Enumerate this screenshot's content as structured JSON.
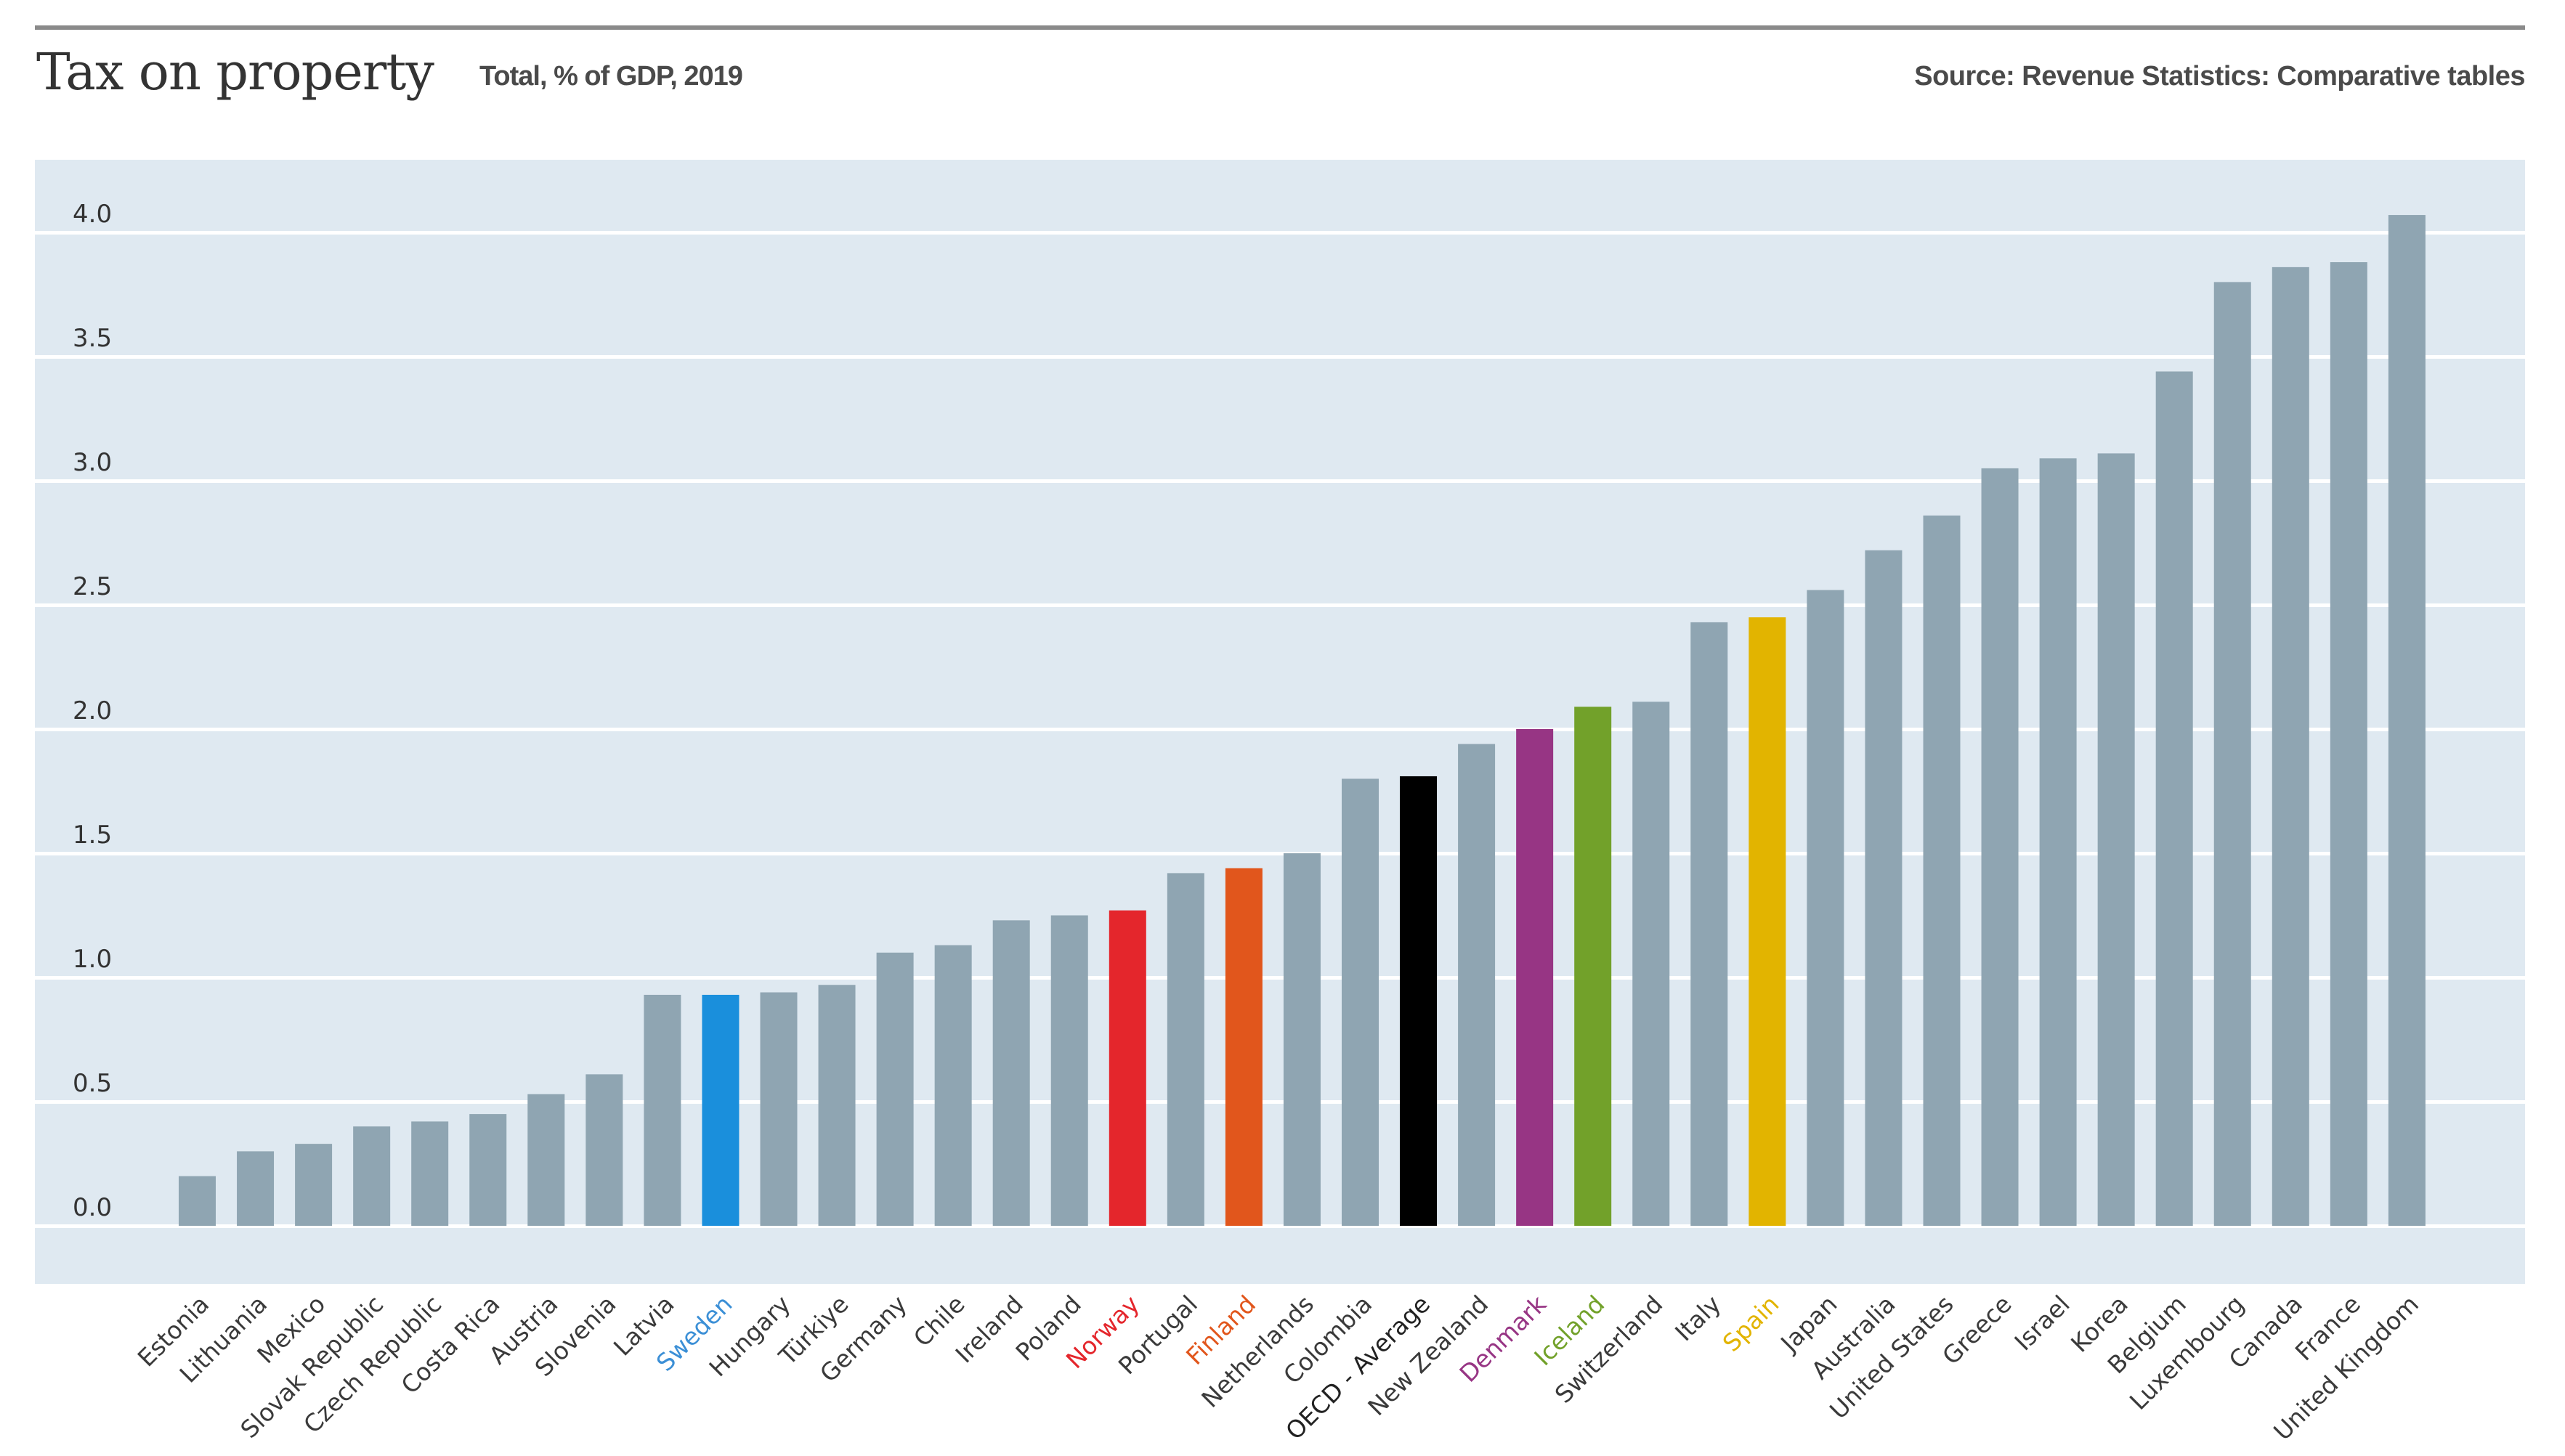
{
  "header": {
    "title": "Tax on property",
    "subtitle": "Total, % of GDP, 2019",
    "source": "Source: Revenue Statistics: Comparative tables"
  },
  "colors": {
    "plot_background": "#dfe9f1",
    "gridline": "#ffffff",
    "default_bar": "#8fa5b2",
    "default_label": "#3a3a3a"
  },
  "chart_data": {
    "type": "bar",
    "title": "Tax on property",
    "subtitle": "Total, % of GDP, 2019",
    "source": "Source: Revenue Statistics: Comparative tables",
    "xlabel": "",
    "ylabel": "",
    "ylim": [
      -0.25,
      4.3
    ],
    "yticks": [
      0.0,
      0.5,
      1.0,
      1.5,
      2.0,
      2.5,
      3.0,
      3.5,
      4.0
    ],
    "ytick_labels": [
      "0.0",
      "0.5",
      "1.0",
      "1.5",
      "2.0",
      "2.5",
      "3.0",
      "3.5",
      "4.0"
    ],
    "grid": true,
    "legend": "none",
    "categories": [
      "Estonia",
      "Lithuania",
      "Mexico",
      "Slovak Republic",
      "Czech Republic",
      "Costa Rica",
      "Austria",
      "Slovenia",
      "Latvia",
      "Sweden",
      "Hungary",
      "Türkiye",
      "Germany",
      "Chile",
      "Ireland",
      "Poland",
      "Norway",
      "Portugal",
      "Finland",
      "Netherlands",
      "Colombia",
      "OECD - Average",
      "New Zealand",
      "Denmark",
      "Iceland",
      "Switzerland",
      "Italy",
      "Spain",
      "Japan",
      "Australia",
      "United States",
      "Greece",
      "Israel",
      "Korea",
      "Belgium",
      "Luxembourg",
      "Canada",
      "France",
      "United Kingdom"
    ],
    "values": [
      0.2,
      0.3,
      0.33,
      0.4,
      0.42,
      0.45,
      0.53,
      0.61,
      0.93,
      0.93,
      0.94,
      0.97,
      1.1,
      1.13,
      1.23,
      1.25,
      1.27,
      1.42,
      1.44,
      1.5,
      1.8,
      1.81,
      1.94,
      2.0,
      2.09,
      2.11,
      2.43,
      2.45,
      2.56,
      2.72,
      2.86,
      3.05,
      3.09,
      3.11,
      3.44,
      3.8,
      3.86,
      3.88,
      4.07
    ],
    "highlights": {
      "Sweden": "#1a8fdc",
      "Norway": "#e4262c",
      "Finland": "#e1561c",
      "OECD - Average": "#000000",
      "Denmark": "#973584",
      "Iceland": "#72a12a",
      "Spain": "#e2b400"
    },
    "label_highlights": {
      "Sweden": "#3b8fd6",
      "Norway": "#e4262c",
      "Finland": "#e1561c",
      "OECD - Average": "#222222",
      "Denmark": "#973584",
      "Iceland": "#72a12a",
      "Spain": "#e2b400"
    }
  }
}
